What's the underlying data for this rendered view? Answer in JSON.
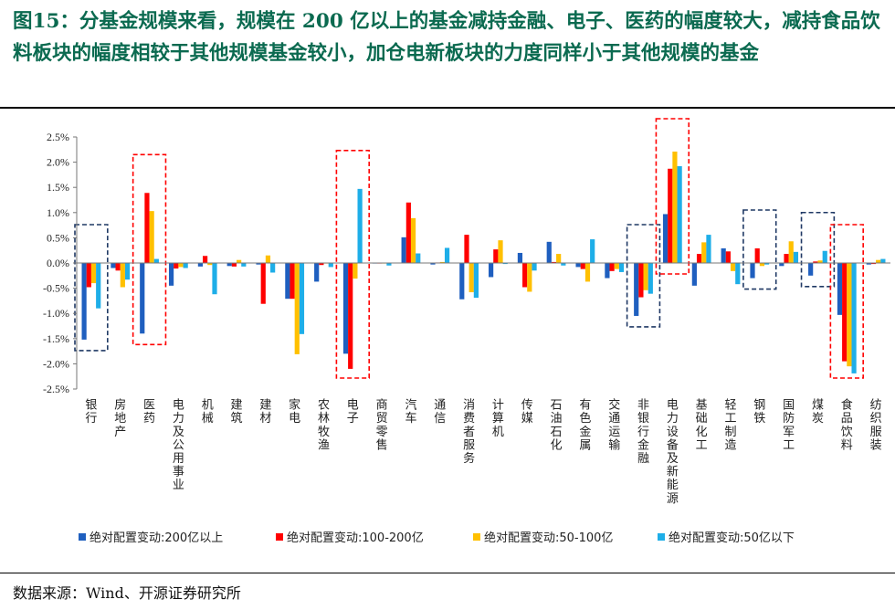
{
  "header": {
    "title": "图15：分基金规模来看，规模在 200 亿以上的基金减持金融、电子、医药的幅度较大，减持食品饮料板块的幅度相较于其他规模基金较小，加仓电新板块的力度同样小于其他规模的基金"
  },
  "footer": {
    "source": "数据来源：Wind、开源证券研究所"
  },
  "colors": {
    "series": [
      "#1f5fbf",
      "#ff0000",
      "#ffc000",
      "#1eaee8"
    ],
    "box_blue": "#1f3864",
    "box_red": "#ff0000",
    "title": "#0b6a50"
  },
  "chart_data": {
    "type": "bar",
    "ylim": [
      -0.025,
      0.025
    ],
    "ytick_step": 0.005,
    "yticks": [
      "2.5%",
      "2.0%",
      "1.5%",
      "1.0%",
      "0.5%",
      "0.0%",
      "-0.5%",
      "-1.0%",
      "-1.5%",
      "-2.0%",
      "-2.5%"
    ],
    "grid": false,
    "legend_position": "bottom",
    "categories": [
      "银行",
      "房地产",
      "医药",
      "电力及公用事业",
      "机械",
      "建筑",
      "建材",
      "家电",
      "农林牧渔",
      "电子",
      "商贸零售",
      "汽车",
      "通信",
      "消费者服务",
      "计算机",
      "传媒",
      "石油石化",
      "有色金属",
      "交通运输",
      "非银行金融",
      "电力设备及新能源",
      "基础化工",
      "轻工制造",
      "钢铁",
      "国防军工",
      "煤炭",
      "食品饮料",
      "纺织服装"
    ],
    "series": [
      {
        "name": "绝对配置变动:200亿以上",
        "values": [
          -0.0152,
          -0.001,
          -0.014,
          -0.0045,
          -0.0007,
          -0.0006,
          -0.0003,
          -0.0071,
          -0.0037,
          -0.018,
          -0.0001,
          0.0051,
          -0.0003,
          -0.0072,
          -0.0028,
          0.002,
          0.0042,
          -0.0008,
          -0.003,
          -0.0105,
          0.0097,
          -0.0045,
          0.0029,
          -0.003,
          -0.0006,
          -0.0025,
          -0.0103,
          -0.0003
        ]
      },
      {
        "name": "绝对配置变动:100-200亿",
        "values": [
          -0.0048,
          -0.0015,
          0.0139,
          -0.0011,
          0.0014,
          -0.0007,
          -0.0081,
          -0.0071,
          -0.0004,
          -0.021,
          -0.0001,
          0.012,
          0.0001,
          0.0056,
          0.0027,
          -0.0048,
          0.0002,
          -0.0012,
          -0.0016,
          -0.0068,
          0.0187,
          0.0018,
          0.0023,
          0.0029,
          0.0018,
          0.0003,
          -0.0195,
          -0.0002
        ]
      },
      {
        "name": "绝对配置变动:50-100亿",
        "values": [
          -0.004,
          -0.0048,
          0.0103,
          -0.0008,
          -0.0004,
          0.0006,
          0.0015,
          -0.0181,
          -0.0001,
          -0.0031,
          -0.0001,
          0.0089,
          0.0002,
          -0.0058,
          0.0045,
          -0.0057,
          0.0018,
          -0.0037,
          -0.0012,
          -0.0054,
          0.0221,
          0.0041,
          -0.0016,
          -0.0006,
          0.0043,
          0.0005,
          -0.0205,
          0.0006
        ]
      },
      {
        "name": "绝对配置变动:50亿以下",
        "values": [
          -0.009,
          -0.0033,
          0.0008,
          -0.001,
          -0.0062,
          -0.0007,
          -0.0019,
          -0.0141,
          -0.0008,
          0.0147,
          -0.0005,
          0.0019,
          0.003,
          -0.0069,
          -0.0002,
          -0.0015,
          -0.0005,
          0.0047,
          -0.0018,
          -0.0061,
          0.0192,
          0.0056,
          -0.0042,
          -0.0003,
          0.0022,
          0.0024,
          -0.0219,
          0.0008
        ]
      }
    ],
    "highlight_boxes": [
      {
        "category": "银行",
        "color": "blue"
      },
      {
        "category": "医药",
        "color": "red"
      },
      {
        "category": "电子",
        "color": "red"
      },
      {
        "category": "非银行金融",
        "color": "blue"
      },
      {
        "category": "电力设备及新能源",
        "color": "red"
      },
      {
        "category": "钢铁",
        "color": "blue"
      },
      {
        "category": "煤炭",
        "color": "blue"
      },
      {
        "category": "食品饮料",
        "color": "red"
      }
    ]
  }
}
